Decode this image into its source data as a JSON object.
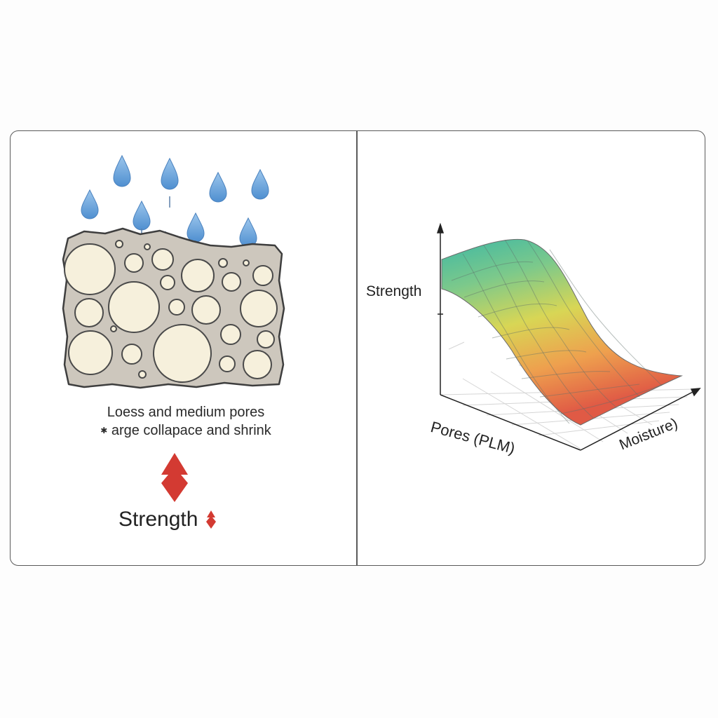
{
  "left_panel": {
    "caption_line1": "Loess and medium pores",
    "caption_line2": "arge collapace and shrink",
    "result_label": "Strength",
    "colors": {
      "water_drop": "#6fa8dc",
      "soil_matrix": "#cdc7bd",
      "pore_fill": "#f6f0dc",
      "arrow_red": "#d33a32"
    }
  },
  "right_panel": {
    "axis_vertical": "Strength",
    "axis_left": "Pores (PLM)",
    "axis_right": "Moisture)",
    "surface_colors": [
      "#3fb8a4",
      "#7cc98b",
      "#d8d655",
      "#eea04e",
      "#e05a45"
    ]
  }
}
